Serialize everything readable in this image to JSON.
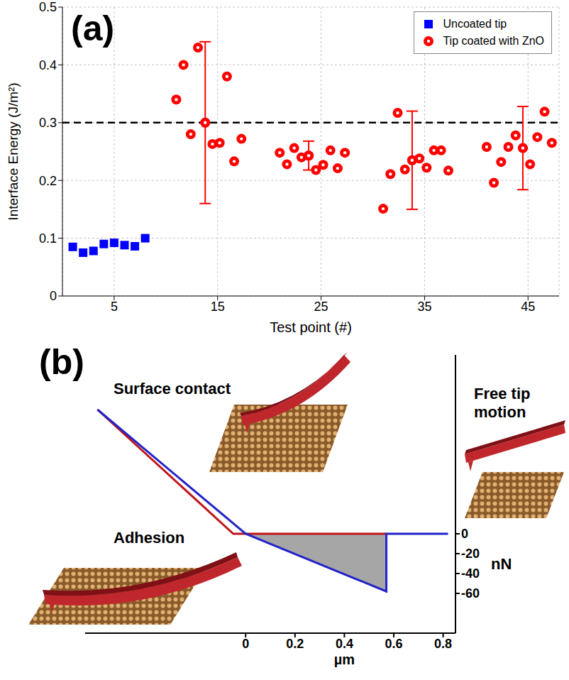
{
  "chart_data": [
    {
      "type": "scatter",
      "title": "(a)",
      "xlabel": "Test point (#)",
      "ylabel": "Interface Energy (J/m²)",
      "xlim": [
        0,
        48
      ],
      "xticks": [
        5,
        15,
        25,
        35,
        45
      ],
      "ylim": [
        0,
        0.5
      ],
      "yticks": [
        0,
        0.1,
        0.2,
        0.3,
        0.4,
        0.5
      ],
      "grid": true,
      "legend": "upper right",
      "reference_line": {
        "y": 0.3,
        "line_style": "dashed",
        "color": "#000000"
      },
      "series": [
        {
          "name": "Uncoated tip",
          "color": "#0000ff",
          "marker": "square",
          "x": [
            1,
            2,
            3,
            4,
            5,
            6,
            7,
            8
          ],
          "values": [
            0.085,
            0.075,
            0.078,
            0.09,
            0.092,
            0.088,
            0.086,
            0.1
          ]
        },
        {
          "name": "Tip coated with ZnO",
          "color": "#ff0000",
          "marker": "circle",
          "x": [
            11,
            11.7,
            12.4,
            13.1,
            13.8,
            14.5,
            15.2,
            15.9,
            16.6,
            17.3,
            21,
            21.7,
            22.4,
            23.1,
            23.8,
            24.5,
            25.2,
            25.9,
            26.6,
            27.3,
            31,
            31.7,
            32.4,
            33.1,
            33.8,
            34.5,
            35.2,
            35.9,
            36.6,
            37.3,
            41,
            41.7,
            42.4,
            43.1,
            43.8,
            44.5,
            45.2,
            45.9,
            46.6,
            47.3
          ],
          "values": [
            0.34,
            0.4,
            0.28,
            0.43,
            0.3,
            0.263,
            0.265,
            0.38,
            0.233,
            0.272,
            0.248,
            0.228,
            0.256,
            0.24,
            0.243,
            0.218,
            0.227,
            0.252,
            0.221,
            0.248,
            0.151,
            0.211,
            0.317,
            0.219,
            0.235,
            0.238,
            0.222,
            0.252,
            0.252,
            0.217,
            0.258,
            0.196,
            0.232,
            0.258,
            0.278,
            0.256,
            0.228,
            0.275,
            0.319,
            0.265
          ],
          "error": [
            null,
            null,
            null,
            null,
            0.14,
            null,
            null,
            null,
            null,
            null,
            null,
            null,
            null,
            null,
            0.025,
            null,
            null,
            null,
            null,
            null,
            null,
            null,
            null,
            null,
            0.085,
            null,
            null,
            null,
            null,
            null,
            null,
            null,
            null,
            null,
            null,
            0.072,
            null,
            null,
            null,
            null
          ]
        }
      ]
    },
    {
      "type": "line",
      "title": "(b)",
      "xlabel": "µm",
      "ylabel": "nN",
      "xlim": [
        -0.65,
        0.85
      ],
      "xticks": [
        0,
        0.2,
        0.4,
        0.6,
        0.8
      ],
      "ylim": [
        -100,
        180
      ],
      "yticks": [
        0,
        -20,
        -40,
        -60
      ],
      "grid": false,
      "annotations": [
        "Surface contact",
        "Free tip motion",
        "Adhesion"
      ],
      "series": [
        {
          "type": "area",
          "color": "#a6a6a6",
          "x": [
            0,
            0.57
          ],
          "values": [
            0,
            -58
          ]
        },
        {
          "type": "line",
          "color": "#c0141c",
          "x": [
            -0.6,
            -0.05,
            0.57
          ],
          "values": [
            125,
            0,
            0
          ]
        },
        {
          "type": "line",
          "color": "#2323c8",
          "x": [
            -0.6,
            0,
            0.57,
            0.57,
            0.82
          ],
          "values": [
            125,
            0,
            -58,
            0,
            0
          ]
        }
      ]
    }
  ]
}
